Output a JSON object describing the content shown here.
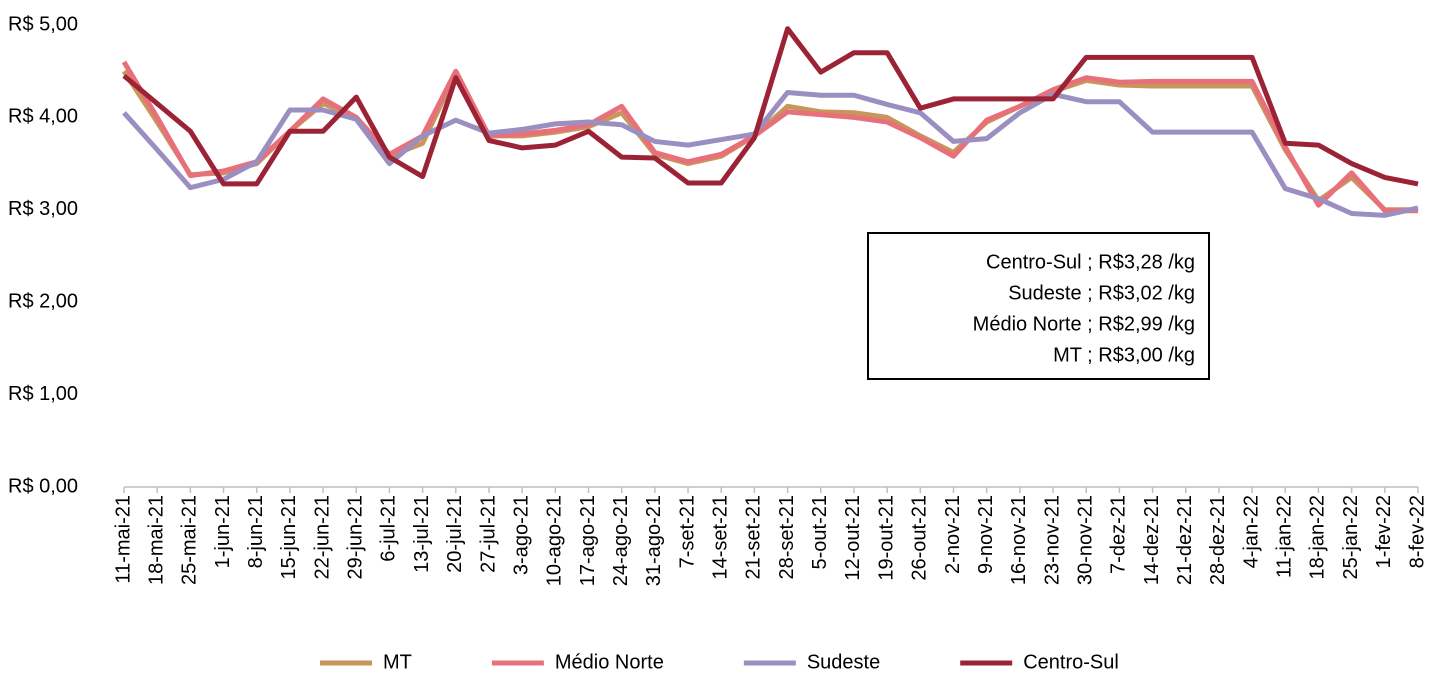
{
  "chart_data": {
    "type": "line",
    "categories": [
      "11-mai-21",
      "18-mai-21",
      "25-mai-21",
      "1-jun-21",
      "8-jun-21",
      "15-jun-21",
      "22-jun-21",
      "29-jun-21",
      "6-jul-21",
      "13-jul-21",
      "20-jul-21",
      "27-jul-21",
      "3-ago-21",
      "10-ago-21",
      "17-ago-21",
      "24-ago-21",
      "31-ago-21",
      "7-set-21",
      "14-set-21",
      "21-set-21",
      "28-set-21",
      "5-out-21",
      "12-out-21",
      "19-out-21",
      "26-out-21",
      "2-nov-21",
      "9-nov-21",
      "16-nov-21",
      "23-nov-21",
      "30-nov-21",
      "7-dez-21",
      "14-dez-21",
      "21-dez-21",
      "28-dez-21",
      "4-jan-22",
      "11-jan-22",
      "18-jan-22",
      "25-jan-22",
      "1-fev-22",
      "8-fev-22"
    ],
    "series": [
      {
        "name": "MT",
        "color": "#c8965a",
        "values": [
          4.5,
          3.95,
          3.38,
          3.4,
          3.5,
          3.85,
          4.15,
          4.0,
          3.58,
          3.72,
          4.48,
          3.8,
          3.8,
          3.84,
          3.9,
          4.05,
          3.6,
          3.5,
          3.58,
          3.8,
          4.12,
          4.06,
          4.05,
          4.0,
          3.8,
          3.62,
          3.95,
          4.12,
          4.28,
          4.4,
          4.35,
          4.34,
          4.34,
          4.34,
          4.34,
          3.65,
          3.1,
          3.35,
          3.0,
          3.0
        ]
      },
      {
        "name": "Médio Norte",
        "color": "#e8707a",
        "values": [
          4.6,
          4.0,
          3.37,
          3.42,
          3.52,
          3.85,
          4.2,
          4.0,
          3.6,
          3.8,
          4.5,
          3.8,
          3.82,
          3.86,
          3.92,
          4.12,
          3.62,
          3.52,
          3.6,
          3.8,
          4.06,
          4.03,
          4.0,
          3.95,
          3.78,
          3.58,
          3.97,
          4.12,
          4.3,
          4.43,
          4.38,
          4.39,
          4.39,
          4.39,
          4.39,
          3.68,
          3.05,
          3.4,
          2.99,
          2.99
        ]
      },
      {
        "name": "Sudeste",
        "color": "#9b8ec0",
        "values": [
          4.05,
          3.65,
          3.24,
          3.33,
          3.52,
          4.08,
          4.08,
          3.98,
          3.5,
          3.8,
          3.97,
          3.83,
          3.87,
          3.93,
          3.95,
          3.92,
          3.74,
          3.7,
          3.76,
          3.82,
          4.27,
          4.24,
          4.24,
          4.14,
          4.05,
          3.74,
          3.77,
          4.05,
          4.25,
          4.17,
          4.17,
          3.84,
          3.84,
          3.84,
          3.84,
          3.23,
          3.12,
          2.96,
          2.94,
          3.02
        ]
      },
      {
        "name": "Centro-Sul",
        "color": "#9b2335",
        "values": [
          4.45,
          4.15,
          3.85,
          3.28,
          3.28,
          3.85,
          3.85,
          4.22,
          3.57,
          3.36,
          4.43,
          3.75,
          3.67,
          3.7,
          3.85,
          3.57,
          3.56,
          3.29,
          3.29,
          3.78,
          4.96,
          4.49,
          4.7,
          4.7,
          4.1,
          4.2,
          4.2,
          4.2,
          4.2,
          4.65,
          4.65,
          4.65,
          4.65,
          4.65,
          4.65,
          3.72,
          3.7,
          3.5,
          3.35,
          3.28
        ]
      }
    ],
    "ylim": [
      0,
      5
    ],
    "yticks": [
      {
        "value": 0,
        "label": "R$ 0,00"
      },
      {
        "value": 1,
        "label": "R$ 1,00"
      },
      {
        "value": 2,
        "label": "R$ 2,00"
      },
      {
        "value": 3,
        "label": "R$ 3,00"
      },
      {
        "value": 4,
        "label": "R$ 4,00"
      },
      {
        "value": 5,
        "label": "R$ 5,00"
      }
    ],
    "grid": false,
    "legend": "bottom",
    "annotations": [
      "Centro-Sul ;  R$3,28 /kg",
      "Sudeste ;  R$3,02 /kg",
      "Médio Norte ;  R$2,99 /kg",
      "MT ;  R$3,00 /kg"
    ]
  }
}
